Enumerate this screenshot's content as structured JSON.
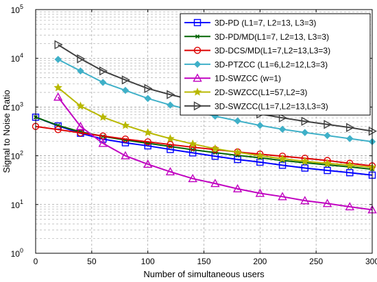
{
  "chart_data": {
    "type": "line",
    "xlabel": "Number of simultaneous users",
    "ylabel": "Signal to Noise Ratio",
    "xlim": [
      0,
      300
    ],
    "ylim": [
      1,
      100000
    ],
    "yscale": "log",
    "grid": true,
    "legend_position": "top-right",
    "x_ticks": [
      "0",
      "50",
      "100",
      "150",
      "200",
      "250",
      "300"
    ],
    "y_ticks": [
      {
        "base": "10",
        "exp": "0"
      },
      {
        "base": "10",
        "exp": "1"
      },
      {
        "base": "10",
        "exp": "2"
      },
      {
        "base": "10",
        "exp": "3"
      },
      {
        "base": "10",
        "exp": "4"
      },
      {
        "base": "10",
        "exp": "5"
      }
    ],
    "series": [
      {
        "name": "3D-PD (L1=7, L2=13, L3=3)",
        "color": "#0000ff",
        "marker": "square",
        "x": [
          0,
          20,
          40,
          60,
          80,
          100,
          120,
          140,
          160,
          180,
          200,
          220,
          240,
          260,
          280,
          300
        ],
        "y": [
          620,
          410,
          290,
          220,
          185,
          160,
          135,
          115,
          98,
          84,
          74,
          64,
          56,
          50,
          45,
          40
        ]
      },
      {
        "name": "3D-PD/MD(L1=7, L2=13, L3=3)",
        "color": "#006400",
        "marker": "x",
        "x": [
          0,
          20,
          40,
          60,
          80,
          100,
          120,
          140,
          160,
          180,
          200,
          220,
          240,
          260,
          280,
          300
        ],
        "y": [
          620,
          420,
          310,
          250,
          210,
          180,
          155,
          133,
          116,
          102,
          91,
          80,
          72,
          65,
          59,
          53
        ]
      },
      {
        "name": "3D-DCS/MD(L1=7,L2=13,L3=3)",
        "color": "#dd0000",
        "marker": "circle",
        "x": [
          0,
          20,
          40,
          60,
          80,
          100,
          120,
          140,
          160,
          180,
          200,
          220,
          240,
          260,
          280,
          300
        ],
        "y": [
          400,
          345,
          295,
          255,
          220,
          193,
          170,
          150,
          134,
          120,
          108,
          98,
          89,
          80,
          70,
          62
        ]
      },
      {
        "name": "3D-PTZCC (L1=6,L2=12,L3=3)",
        "color": "#3fb0c8",
        "marker": "diamond",
        "x": [
          20,
          40,
          60,
          80,
          100,
          120,
          140,
          160,
          180,
          200,
          220,
          240,
          260,
          280,
          300
        ],
        "y": [
          9500,
          5500,
          3200,
          2200,
          1500,
          1100,
          850,
          650,
          520,
          420,
          350,
          300,
          260,
          225,
          195
        ]
      },
      {
        "name": "1D-SWZCC (w=1)",
        "color": "#c000c0",
        "marker": "triangle-up",
        "x": [
          20,
          40,
          60,
          80,
          100,
          120,
          140,
          160,
          180,
          200,
          220,
          240,
          260,
          280,
          300
        ],
        "y": [
          1600,
          400,
          180,
          100,
          67,
          47,
          34,
          27,
          21,
          17,
          14.5,
          12,
          10.5,
          9,
          7.8
        ]
      },
      {
        "name": "2D-SWZCC(L1=57,L2=3)",
        "color": "#b8b800",
        "marker": "star",
        "x": [
          20,
          40,
          60,
          80,
          100,
          120,
          140,
          160,
          180,
          200,
          220,
          240,
          260,
          280,
          300
        ],
        "y": [
          2500,
          1050,
          620,
          420,
          300,
          225,
          175,
          140,
          118,
          100,
          87,
          77,
          70,
          64,
          58
        ]
      },
      {
        "name": "3D-SWZCC(L1=7,L2=13,L3=3)",
        "color": "#404040",
        "marker": "triangle-right",
        "x": [
          20,
          40,
          60,
          80,
          100,
          120,
          140,
          160,
          180,
          200,
          220,
          240,
          260,
          280,
          300
        ],
        "y": [
          19000,
          9800,
          5500,
          3600,
          2400,
          1800,
          1400,
          1100,
          870,
          720,
          600,
          510,
          440,
          380,
          320
        ]
      }
    ]
  }
}
